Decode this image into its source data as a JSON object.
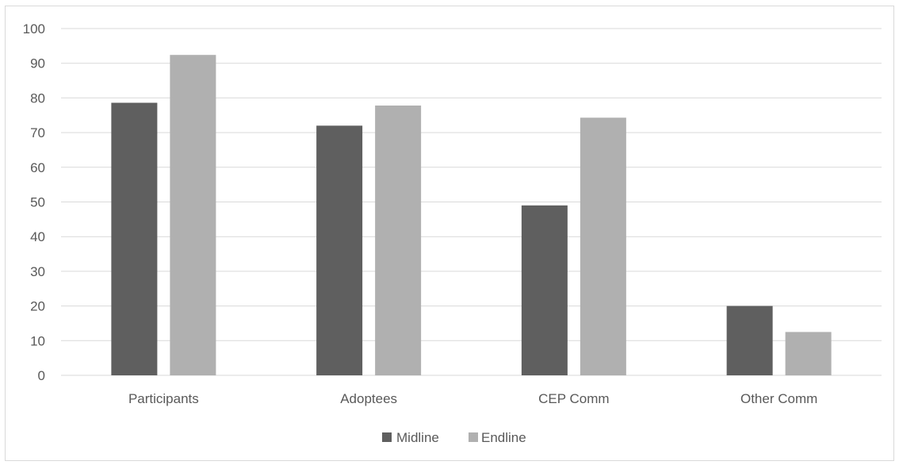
{
  "chart_data": {
    "type": "bar",
    "title": "",
    "xlabel": "",
    "ylabel": "",
    "categories": [
      "Participants",
      "Adoptees",
      "CEP Comm",
      "Other Comm"
    ],
    "series": [
      {
        "name": "Midline",
        "values": [
          78.6,
          72,
          49,
          20
        ],
        "color": "#5f5f5f"
      },
      {
        "name": "Endline",
        "values": [
          92.4,
          77.8,
          74.3,
          12.5
        ],
        "color": "#b0b0b0"
      }
    ],
    "ylim": [
      0,
      100
    ],
    "yticks": [
      0,
      10,
      20,
      30,
      40,
      50,
      60,
      70,
      80,
      90,
      100
    ],
    "grid": true,
    "legend_position": "bottom",
    "gridline_color": "#d9d9d9",
    "label_color": "#595959"
  }
}
